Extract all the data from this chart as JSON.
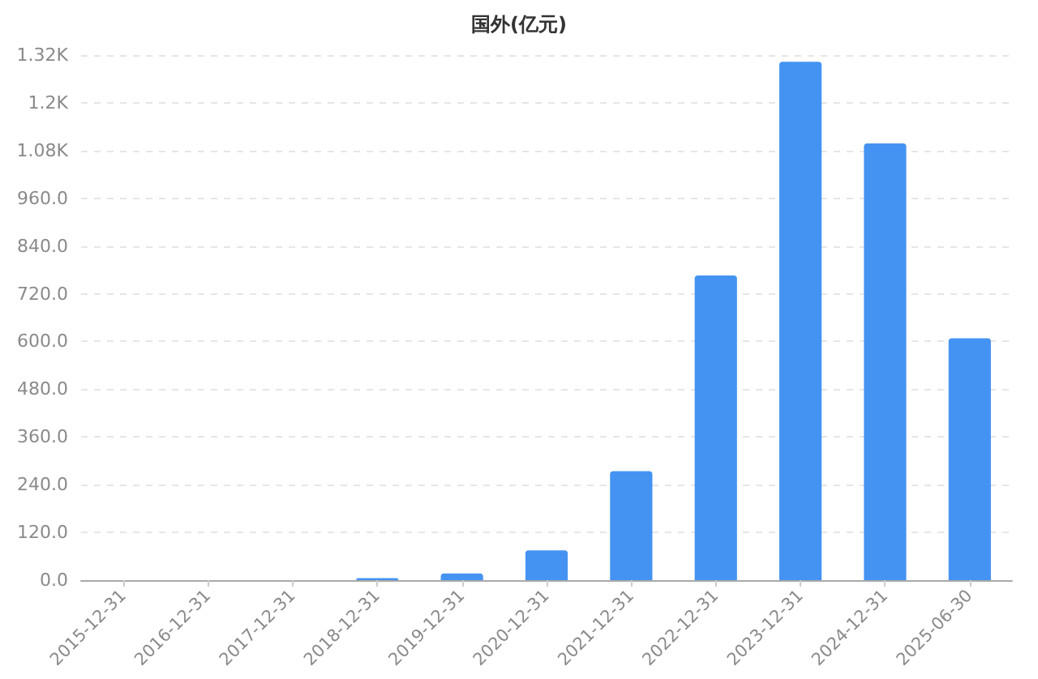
{
  "chart_data": {
    "type": "bar",
    "title": "国外(亿元)",
    "categories": [
      "2015-12-31",
      "2016-12-31",
      "2017-12-31",
      "2018-12-31",
      "2019-12-31",
      "2020-12-31",
      "2021-12-31",
      "2022-12-31",
      "2023-12-31",
      "2024-12-31",
      "2025-06-30"
    ],
    "values": [
      0,
      0,
      0,
      5,
      17,
      75,
      274,
      766,
      1303,
      1098,
      608
    ],
    "color": "#4493f2",
    "ylim": [
      0,
      1320
    ],
    "yticks": [
      {
        "value": 0,
        "label": "0.0"
      },
      {
        "value": 120,
        "label": "120.0"
      },
      {
        "value": 240,
        "label": "240.0"
      },
      {
        "value": 360,
        "label": "360.0"
      },
      {
        "value": 480,
        "label": "480.0"
      },
      {
        "value": 600,
        "label": "600.0"
      },
      {
        "value": 720,
        "label": "720.0"
      },
      {
        "value": 840,
        "label": "840.0"
      },
      {
        "value": 960,
        "label": "960.0"
      },
      {
        "value": 1080,
        "label": "1.08K"
      },
      {
        "value": 1200,
        "label": "1.2K"
      },
      {
        "value": 1320,
        "label": "1.32K"
      }
    ],
    "grid": "y"
  }
}
